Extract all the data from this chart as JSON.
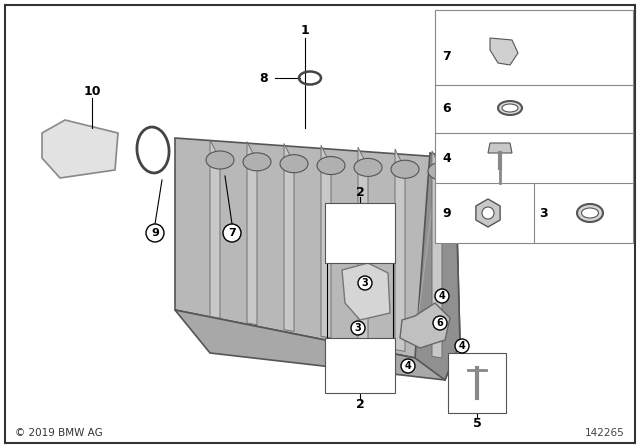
{
  "bg_color": "#ffffff",
  "copyright": "© 2019 BMW AG",
  "part_number": "142265",
  "fig_width": 6.4,
  "fig_height": 4.48,
  "dpi": 100
}
